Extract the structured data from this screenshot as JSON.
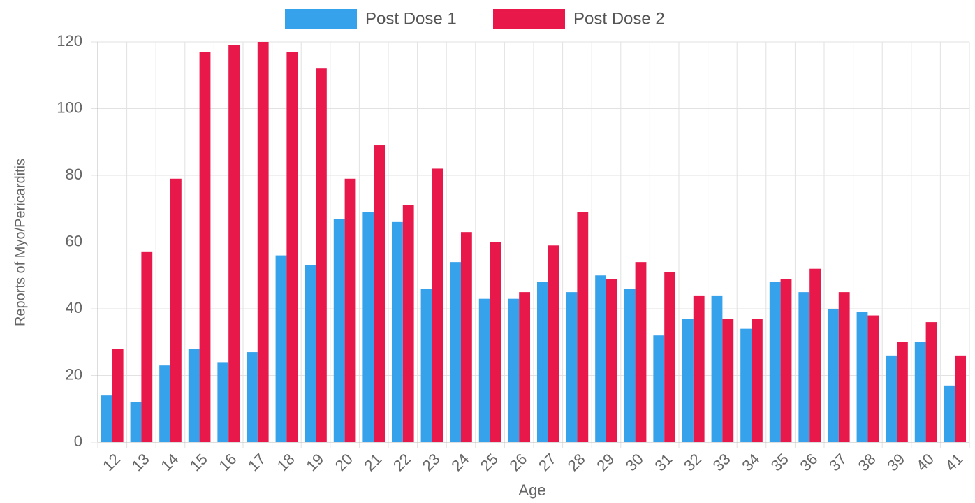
{
  "chart_data": {
    "type": "bar",
    "x_label": "Age",
    "y_label": "Reports of Myo/Pericarditis",
    "categories": [
      "12",
      "13",
      "14",
      "15",
      "16",
      "17",
      "18",
      "19",
      "20",
      "21",
      "22",
      "23",
      "24",
      "25",
      "26",
      "27",
      "28",
      "29",
      "30",
      "31",
      "32",
      "33",
      "34",
      "35",
      "36",
      "37",
      "38",
      "39",
      "40",
      "41"
    ],
    "series": [
      {
        "name": "Post Dose 1",
        "color": "#36a2eb",
        "values": [
          14,
          12,
          23,
          28,
          24,
          27,
          56,
          53,
          67,
          69,
          66,
          46,
          54,
          43,
          43,
          48,
          45,
          50,
          46,
          32,
          37,
          44,
          34,
          48,
          45,
          40,
          39,
          26,
          30,
          17
        ]
      },
      {
        "name": "Post Dose 2",
        "color": "#e8194a",
        "values": [
          28,
          57,
          79,
          117,
          119,
          120,
          117,
          112,
          79,
          89,
          71,
          82,
          63,
          60,
          45,
          59,
          69,
          49,
          54,
          51,
          44,
          37,
          37,
          49,
          52,
          45,
          38,
          30,
          36,
          26
        ]
      }
    ],
    "ylim": [
      0,
      120
    ],
    "yticks": [
      0,
      20,
      40,
      60,
      80,
      100,
      120
    ],
    "grid": true,
    "legend": "top"
  }
}
